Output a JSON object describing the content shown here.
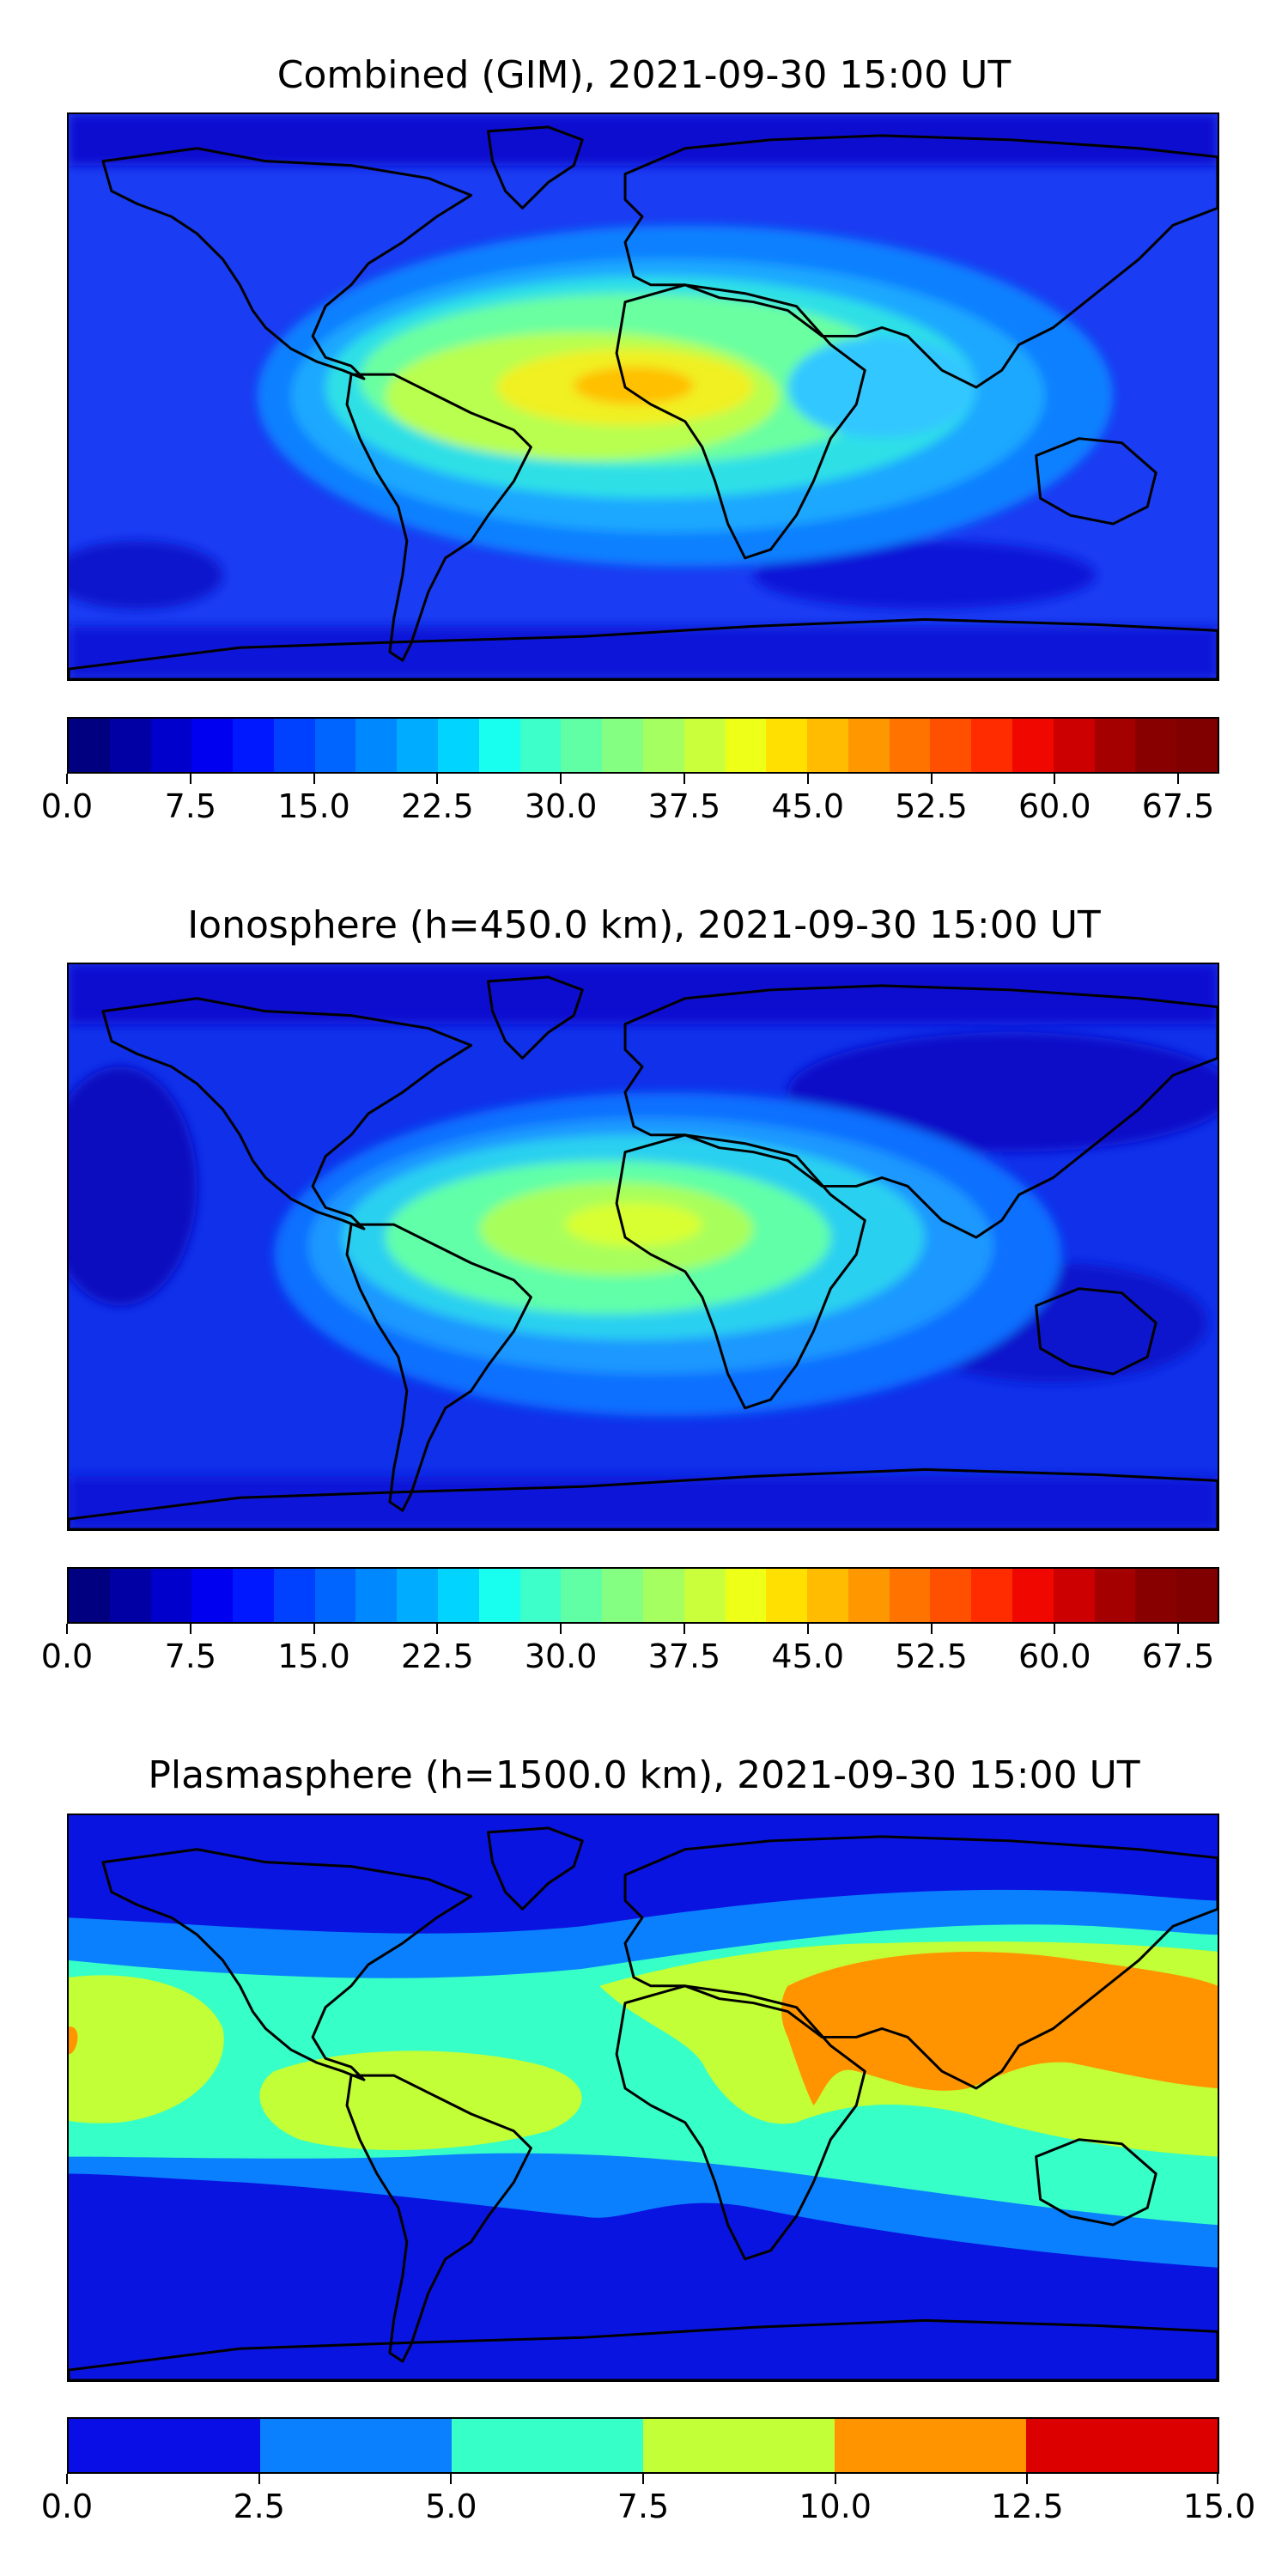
{
  "panels": [
    {
      "title": "Combined (GIM), 2021-09-30 15:00 UT",
      "colorbar": {
        "tick_labels": [
          "0.0",
          "7.5",
          "15.0",
          "22.5",
          "30.0",
          "37.5",
          "45.0",
          "52.5",
          "60.0",
          "67.5"
        ],
        "ticks": [
          0,
          7.5,
          15,
          22.5,
          30,
          37.5,
          45,
          52.5,
          60,
          67.5
        ],
        "range": [
          0,
          70
        ],
        "levels": 28,
        "colormap": "jet"
      }
    },
    {
      "title": "Ionosphere  (h=450.0 km), 2021-09-30 15:00 UT",
      "colorbar": {
        "tick_labels": [
          "0.0",
          "7.5",
          "15.0",
          "22.5",
          "30.0",
          "37.5",
          "45.0",
          "52.5",
          "60.0",
          "67.5"
        ],
        "ticks": [
          0,
          7.5,
          15,
          22.5,
          30,
          37.5,
          45,
          52.5,
          60,
          67.5
        ],
        "range": [
          0,
          70
        ],
        "levels": 28,
        "colormap": "jet"
      }
    },
    {
      "title": "Plasmasphere (h=1500.0 km), 2021-09-30 15:00 UT",
      "colorbar": {
        "tick_labels": [
          "0.0",
          "2.5",
          "5.0",
          "7.5",
          "10.0",
          "12.5",
          "15.0"
        ],
        "ticks": [
          0,
          2.5,
          5,
          7.5,
          10,
          12.5,
          15
        ],
        "range": [
          0,
          15
        ],
        "levels": 6,
        "colormap": "jet",
        "colors": [
          "#0a0ee6",
          "#0a80ff",
          "#36ffc7",
          "#c2ff36",
          "#ff9400",
          "#dc0000"
        ]
      }
    }
  ],
  "colors": {
    "combined_background": "#1a3cf2",
    "ionosphere_background": "#1030ea",
    "plasmasphere_background": "#0a14e0",
    "coastline": "#000000"
  }
}
